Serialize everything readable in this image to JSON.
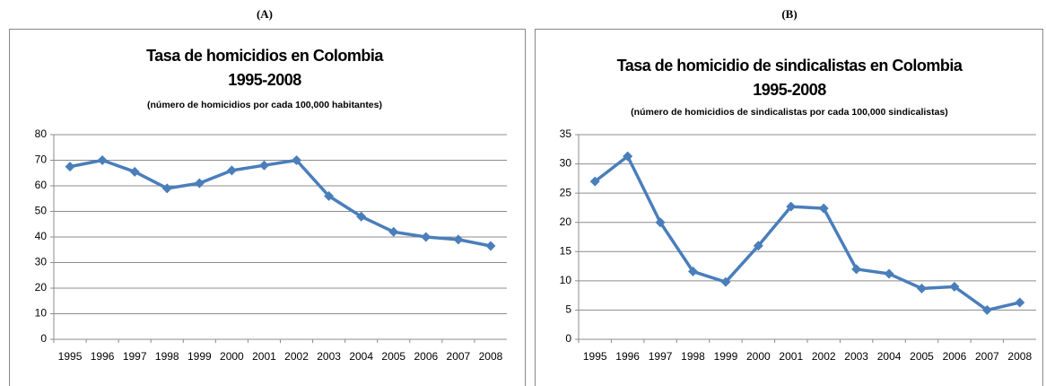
{
  "chart_data": [
    {
      "type": "line",
      "label": "(A)",
      "title": [
        "Tasa de homicidios en Colombia",
        "1995-2008"
      ],
      "subtitle": "(número de homicidios por cada 100,000 habitantes)",
      "categories": [
        "1995",
        "1996",
        "1997",
        "1998",
        "1999",
        "2000",
        "2001",
        "2002",
        "2003",
        "2004",
        "2005",
        "2006",
        "2007",
        "2008"
      ],
      "series": [
        {
          "name": null,
          "color": "#4a7ebb",
          "values": [
            67.5,
            70,
            65.5,
            59,
            61,
            66,
            68,
            70,
            56,
            48,
            42,
            40,
            39,
            36.5
          ]
        }
      ],
      "ylim": [
        0,
        80
      ],
      "yticks": [
        0,
        10,
        20,
        30,
        40,
        50,
        60,
        70,
        80
      ],
      "grid": true
    },
    {
      "type": "line",
      "label": "(B)",
      "title": [
        "Tasa de homicidio de sindicalistas en Colombia",
        "1995-2008"
      ],
      "subtitle": "(número de homicidios de sindicalistas por cada 100,000 sindicalistas)",
      "categories": [
        "1995",
        "1996",
        "1997",
        "1998",
        "1999",
        "2000",
        "2001",
        "2002",
        "2003",
        "2004",
        "2005",
        "2006",
        "2007",
        "2008"
      ],
      "series": [
        {
          "name": null,
          "color": "#4a7ebb",
          "values": [
            27,
            31.3,
            20,
            11.6,
            9.8,
            16,
            22.7,
            22.4,
            12,
            11.2,
            8.7,
            9,
            5,
            6.3
          ]
        }
      ],
      "ylim": [
        0,
        35
      ],
      "yticks": [
        0,
        5,
        10,
        15,
        20,
        25,
        30,
        35
      ],
      "grid": true
    }
  ]
}
